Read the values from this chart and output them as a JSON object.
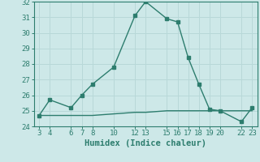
{
  "xlabel": "Humidex (Indice chaleur)",
  "line1_x": [
    3,
    4,
    6,
    7,
    8,
    10,
    12,
    13,
    15,
    16,
    17,
    18,
    19,
    20,
    22,
    23
  ],
  "line1_y": [
    24.7,
    25.7,
    25.2,
    26.0,
    26.7,
    27.8,
    31.1,
    32.0,
    30.9,
    30.7,
    28.4,
    26.7,
    25.1,
    25.0,
    24.3,
    25.2
  ],
  "line2_x": [
    3,
    4,
    6,
    7,
    8,
    10,
    12,
    13,
    15,
    16,
    17,
    18,
    19,
    20,
    22,
    23
  ],
  "line2_y": [
    24.7,
    24.7,
    24.7,
    24.7,
    24.7,
    24.8,
    24.9,
    24.9,
    25.0,
    25.0,
    25.0,
    25.0,
    25.0,
    25.0,
    25.0,
    25.0
  ],
  "line_color": "#2d7d6e",
  "bg_color": "#cde8e8",
  "grid_color": "#b8d8d8",
  "ylim": [
    24,
    32
  ],
  "yticks": [
    24,
    25,
    26,
    27,
    28,
    29,
    30,
    31,
    32
  ],
  "xticks": [
    3,
    4,
    6,
    7,
    8,
    10,
    12,
    13,
    15,
    16,
    17,
    18,
    19,
    20,
    22,
    23
  ],
  "xlabel_fontsize": 7.5,
  "tick_fontsize": 6.5,
  "line_width": 1.0,
  "marker_size": 2.5
}
